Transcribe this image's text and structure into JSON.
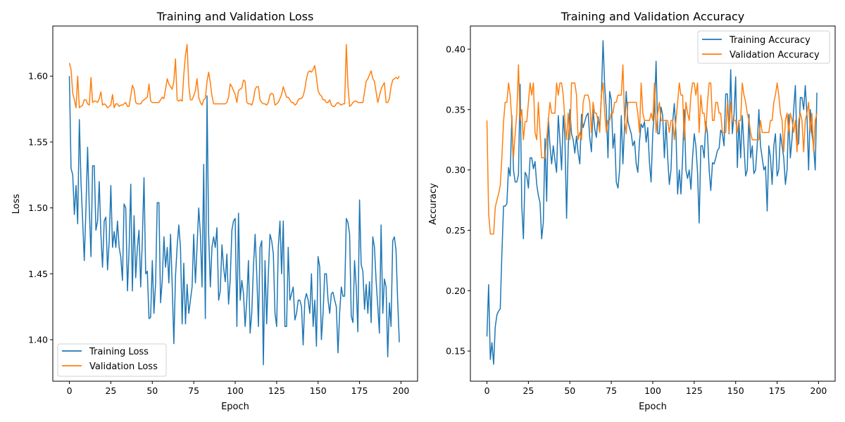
{
  "chart_data": [
    {
      "type": "line",
      "title": "Training and Validation Loss",
      "xlabel": "Epoch",
      "ylabel": "Loss",
      "xlim": [
        -10,
        210
      ],
      "ylim": [
        1.3685,
        1.638
      ],
      "xticks": [
        0,
        25,
        50,
        75,
        100,
        125,
        150,
        175,
        200
      ],
      "yticks": [
        1.4,
        1.45,
        1.5,
        1.55,
        1.6
      ],
      "ytick_labels": [
        "1.40",
        "1.45",
        "1.50",
        "1.55",
        "1.60"
      ],
      "legend_position": "lower-left",
      "grid": false,
      "series": [
        {
          "name": "Training Loss",
          "color": "#1f77b4",
          "values": [
            1.6,
            1.53,
            1.525,
            1.495,
            1.517,
            1.488,
            1.567,
            1.52,
            1.49,
            1.46,
            1.5,
            1.546,
            1.5,
            1.463,
            1.532,
            1.532,
            1.483,
            1.49,
            1.52,
            1.48,
            1.455,
            1.49,
            1.493,
            1.453,
            1.475,
            1.517,
            1.47,
            1.482,
            1.47,
            1.49,
            1.47,
            1.463,
            1.445,
            1.503,
            1.5,
            1.437,
            1.468,
            1.518,
            1.437,
            1.494,
            1.447,
            1.47,
            1.483,
            1.44,
            1.475,
            1.523,
            1.45,
            1.452,
            1.416,
            1.417,
            1.46,
            1.42,
            1.443,
            1.504,
            1.504,
            1.428,
            1.445,
            1.478,
            1.455,
            1.47,
            1.443,
            1.48,
            1.442,
            1.397,
            1.448,
            1.471,
            1.487,
            1.47,
            1.412,
            1.458,
            1.412,
            1.442,
            1.42,
            1.43,
            1.44,
            1.48,
            1.443,
            1.47,
            1.5,
            1.48,
            1.44,
            1.533,
            1.416,
            1.585,
            1.48,
            1.44,
            1.47,
            1.478,
            1.47,
            1.485,
            1.43,
            1.437,
            1.472,
            1.455,
            1.444,
            1.465,
            1.427,
            1.445,
            1.483,
            1.49,
            1.492,
            1.41,
            1.496,
            1.43,
            1.445,
            1.435,
            1.41,
            1.43,
            1.46,
            1.405,
            1.42,
            1.455,
            1.48,
            1.45,
            1.41,
            1.47,
            1.475,
            1.381,
            1.46,
            1.412,
            1.45,
            1.48,
            1.475,
            1.465,
            1.42,
            1.41,
            1.47,
            1.49,
            1.45,
            1.49,
            1.41,
            1.41,
            1.47,
            1.43,
            1.435,
            1.44,
            1.415,
            1.42,
            1.43,
            1.43,
            1.425,
            1.396,
            1.43,
            1.435,
            1.43,
            1.42,
            1.45,
            1.41,
            1.43,
            1.395,
            1.463,
            1.455,
            1.4,
            1.42,
            1.45,
            1.45,
            1.43,
            1.42,
            1.435,
            1.436,
            1.43,
            1.425,
            1.39,
            1.42,
            1.44,
            1.433,
            1.433,
            1.492,
            1.489,
            1.48,
            1.418,
            1.413,
            1.46,
            1.44,
            1.406,
            1.506,
            1.457,
            1.452,
            1.423,
            1.442,
            1.42,
            1.444,
            1.413,
            1.478,
            1.47,
            1.445,
            1.425,
            1.405,
            1.487,
            1.42,
            1.446,
            1.44,
            1.387,
            1.428,
            1.41,
            1.475,
            1.478,
            1.468,
            1.43,
            1.398
          ]
        },
        {
          "name": "Validation Loss",
          "color": "#ff7f0e",
          "values": [
            1.61,
            1.605,
            1.587,
            1.582,
            1.576,
            1.6,
            1.576,
            1.577,
            1.578,
            1.582,
            1.582,
            1.579,
            1.578,
            1.599,
            1.58,
            1.581,
            1.581,
            1.58,
            1.583,
            1.588,
            1.578,
            1.579,
            1.578,
            1.576,
            1.577,
            1.578,
            1.586,
            1.576,
            1.579,
            1.579,
            1.577,
            1.578,
            1.578,
            1.579,
            1.58,
            1.577,
            1.577,
            1.585,
            1.593,
            1.59,
            1.58,
            1.579,
            1.579,
            1.579,
            1.581,
            1.582,
            1.583,
            1.584,
            1.594,
            1.581,
            1.58,
            1.58,
            1.58,
            1.58,
            1.58,
            1.582,
            1.584,
            1.583,
            1.59,
            1.598,
            1.594,
            1.592,
            1.59,
            1.596,
            1.613,
            1.582,
            1.581,
            1.582,
            1.581,
            1.601,
            1.616,
            1.624,
            1.593,
            1.582,
            1.582,
            1.585,
            1.589,
            1.598,
            1.584,
            1.58,
            1.578,
            1.582,
            1.583,
            1.596,
            1.603,
            1.595,
            1.585,
            1.579,
            1.579,
            1.579,
            1.579,
            1.579,
            1.579,
            1.579,
            1.579,
            1.58,
            1.584,
            1.594,
            1.592,
            1.589,
            1.586,
            1.58,
            1.589,
            1.59,
            1.591,
            1.597,
            1.596,
            1.58,
            1.579,
            1.579,
            1.578,
            1.582,
            1.59,
            1.592,
            1.592,
            1.582,
            1.58,
            1.579,
            1.579,
            1.578,
            1.58,
            1.586,
            1.587,
            1.586,
            1.578,
            1.579,
            1.58,
            1.583,
            1.586,
            1.592,
            1.588,
            1.584,
            1.584,
            1.582,
            1.58,
            1.58,
            1.578,
            1.579,
            1.582,
            1.583,
            1.583,
            1.585,
            1.59,
            1.598,
            1.603,
            1.604,
            1.603,
            1.605,
            1.608,
            1.599,
            1.589,
            1.586,
            1.585,
            1.582,
            1.582,
            1.58,
            1.58,
            1.582,
            1.578,
            1.577,
            1.577,
            1.579,
            1.58,
            1.579,
            1.578,
            1.579,
            1.579,
            1.624,
            1.593,
            1.577,
            1.578,
            1.58,
            1.581,
            1.581,
            1.58,
            1.58,
            1.58,
            1.58,
            1.588,
            1.596,
            1.598,
            1.601,
            1.604,
            1.598,
            1.596,
            1.588,
            1.58,
            1.585,
            1.59,
            1.593,
            1.595,
            1.58,
            1.58,
            1.583,
            1.592,
            1.597,
            1.598,
            1.599,
            1.598,
            1.6
          ]
        }
      ]
    },
    {
      "type": "line",
      "title": "Training and Validation Accuracy",
      "xlabel": "Epoch",
      "ylabel": "Accuracy",
      "xlim": [
        -10,
        210
      ],
      "ylim": [
        0.125,
        0.4192
      ],
      "xticks": [
        0,
        25,
        50,
        75,
        100,
        125,
        150,
        175,
        200
      ],
      "yticks": [
        0.15,
        0.2,
        0.25,
        0.3,
        0.35,
        0.4
      ],
      "ytick_labels": [
        "0.15",
        "0.20",
        "0.25",
        "0.30",
        "0.35",
        "0.40"
      ],
      "legend_position": "upper-right",
      "grid": false,
      "series": [
        {
          "name": "Training Accuracy",
          "color": "#1f77b4",
          "values": [
            0.162,
            0.205,
            0.143,
            0.157,
            0.139,
            0.17,
            0.18,
            0.183,
            0.185,
            0.23,
            0.27,
            0.27,
            0.272,
            0.302,
            0.295,
            0.345,
            0.3,
            0.29,
            0.29,
            0.296,
            0.371,
            0.27,
            0.243,
            0.298,
            0.295,
            0.285,
            0.31,
            0.31,
            0.301,
            0.307,
            0.288,
            0.279,
            0.273,
            0.243,
            0.257,
            0.326,
            0.274,
            0.343,
            0.32,
            0.305,
            0.32,
            0.308,
            0.298,
            0.345,
            0.325,
            0.3,
            0.345,
            0.327,
            0.26,
            0.318,
            0.35,
            0.33,
            0.325,
            0.314,
            0.328,
            0.314,
            0.305,
            0.346,
            0.335,
            0.34,
            0.345,
            0.347,
            0.327,
            0.315,
            0.35,
            0.334,
            0.327,
            0.344,
            0.335,
            0.36,
            0.407,
            0.37,
            0.349,
            0.31,
            0.365,
            0.358,
            0.318,
            0.33,
            0.29,
            0.285,
            0.3,
            0.345,
            0.305,
            0.337,
            0.365,
            0.34,
            0.335,
            0.33,
            0.32,
            0.324,
            0.305,
            0.298,
            0.324,
            0.338,
            0.335,
            0.34,
            0.323,
            0.335,
            0.306,
            0.29,
            0.33,
            0.35,
            0.39,
            0.33,
            0.33,
            0.352,
            0.345,
            0.31,
            0.34,
            0.31,
            0.288,
            0.3,
            0.34,
            0.355,
            0.33,
            0.28,
            0.3,
            0.28,
            0.31,
            0.35,
            0.3,
            0.293,
            0.3,
            0.284,
            0.31,
            0.33,
            0.32,
            0.298,
            0.256,
            0.32,
            0.32,
            0.31,
            0.34,
            0.33,
            0.3,
            0.283,
            0.306,
            0.305,
            0.31,
            0.316,
            0.318,
            0.333,
            0.33,
            0.32,
            0.363,
            0.363,
            0.33,
            0.383,
            0.33,
            0.346,
            0.377,
            0.302,
            0.34,
            0.31,
            0.345,
            0.32,
            0.295,
            0.3,
            0.346,
            0.31,
            0.32,
            0.297,
            0.3,
            0.32,
            0.35,
            0.32,
            0.31,
            0.3,
            0.303,
            0.266,
            0.32,
            0.31,
            0.288,
            0.32,
            0.33,
            0.295,
            0.3,
            0.33,
            0.32,
            0.31,
            0.288,
            0.3,
            0.346,
            0.31,
            0.326,
            0.35,
            0.37,
            0.32,
            0.322,
            0.36,
            0.36,
            0.35,
            0.37,
            0.345,
            0.3,
            0.35,
            0.33,
            0.32,
            0.3,
            0.364
          ]
        },
        {
          "name": "Validation Accuracy",
          "color": "#ff7f0e",
          "values": [
            0.341,
            0.264,
            0.247,
            0.247,
            0.247,
            0.269,
            0.275,
            0.28,
            0.287,
            0.31,
            0.34,
            0.356,
            0.356,
            0.372,
            0.362,
            0.341,
            0.31,
            0.33,
            0.347,
            0.387,
            0.341,
            0.35,
            0.325,
            0.34,
            0.34,
            0.356,
            0.372,
            0.362,
            0.372,
            0.331,
            0.325,
            0.356,
            0.331,
            0.31,
            0.31,
            0.31,
            0.325,
            0.341,
            0.356,
            0.347,
            0.347,
            0.347,
            0.372,
            0.362,
            0.372,
            0.372,
            0.362,
            0.341,
            0.325,
            0.347,
            0.325,
            0.372,
            0.372,
            0.372,
            0.362,
            0.325,
            0.331,
            0.325,
            0.356,
            0.362,
            0.362,
            0.362,
            0.356,
            0.331,
            0.356,
            0.347,
            0.347,
            0.341,
            0.331,
            0.362,
            0.372,
            0.347,
            0.331,
            0.341,
            0.341,
            0.347,
            0.347,
            0.356,
            0.356,
            0.362,
            0.362,
            0.362,
            0.387,
            0.341,
            0.33,
            0.356,
            0.356,
            0.356,
            0.356,
            0.356,
            0.356,
            0.347,
            0.331,
            0.372,
            0.347,
            0.341,
            0.341,
            0.341,
            0.341,
            0.347,
            0.341,
            0.372,
            0.331,
            0.347,
            0.356,
            0.341,
            0.341,
            0.341,
            0.341,
            0.341,
            0.331,
            0.341,
            0.341,
            0.325,
            0.341,
            0.356,
            0.372,
            0.362,
            0.362,
            0.325,
            0.356,
            0.347,
            0.341,
            0.362,
            0.372,
            0.372,
            0.362,
            0.372,
            0.331,
            0.362,
            0.347,
            0.347,
            0.331,
            0.356,
            0.372,
            0.372,
            0.341,
            0.341,
            0.356,
            0.356,
            0.347,
            0.347,
            0.331,
            0.331,
            0.331,
            0.356,
            0.331,
            0.356,
            0.341,
            0.341,
            0.341,
            0.331,
            0.341,
            0.341,
            0.372,
            0.362,
            0.356,
            0.347,
            0.341,
            0.331,
            0.325,
            0.325,
            0.325,
            0.325,
            0.325,
            0.341,
            0.331,
            0.331,
            0.331,
            0.331,
            0.331,
            0.341,
            0.341,
            0.356,
            0.362,
            0.372,
            0.362,
            0.347,
            0.341,
            0.315,
            0.341,
            0.347,
            0.331,
            0.347,
            0.341,
            0.331,
            0.341,
            0.315,
            0.341,
            0.347,
            0.341,
            0.315,
            0.341,
            0.347,
            0.356,
            0.331,
            0.347,
            0.315,
            0.341,
            0.347
          ]
        }
      ]
    }
  ]
}
